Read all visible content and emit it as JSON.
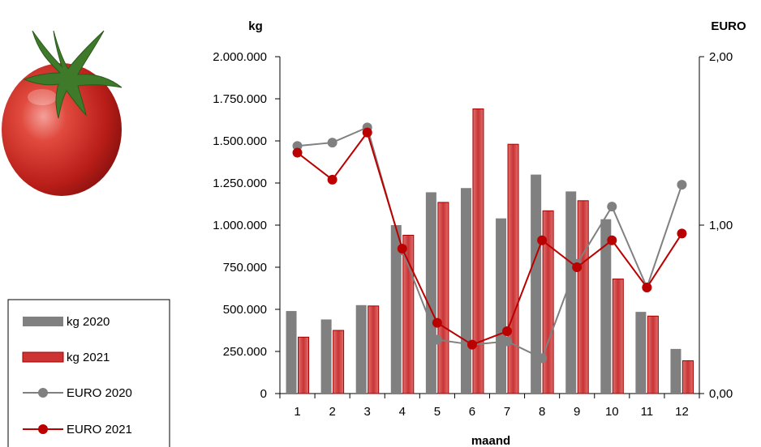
{
  "chart_data": {
    "type": "bar",
    "xlabel": "maand",
    "ylabel_left": "kg",
    "ylabel_right": "EURO",
    "categories": [
      "1",
      "2",
      "3",
      "4",
      "5",
      "6",
      "7",
      "8",
      "9",
      "10",
      "11",
      "12"
    ],
    "ylim_left": [
      0,
      2000000
    ],
    "ylim_right": [
      0,
      2
    ],
    "left_ticks": [
      "0",
      "250.000",
      "500.000",
      "750.000",
      "1.000.000",
      "1.250.000",
      "1.500.000",
      "1.750.000",
      "2.000.000"
    ],
    "right_ticks": [
      "0,00",
      "1,00",
      "2,00"
    ],
    "series": [
      {
        "name": "kg 2020",
        "type": "bar",
        "axis": "left",
        "color": "#808080",
        "values": [
          490000,
          440000,
          525000,
          1000000,
          1195000,
          1220000,
          1040000,
          1300000,
          1200000,
          1035000,
          485000,
          265000
        ]
      },
      {
        "name": "kg 2021",
        "type": "bar",
        "axis": "left",
        "color": "#cc3333",
        "values": [
          335000,
          375000,
          520000,
          940000,
          1135000,
          1690000,
          1480000,
          1085000,
          1145000,
          680000,
          460000,
          195000
        ]
      },
      {
        "name": "EURO 2020",
        "type": "line",
        "axis": "right",
        "color": "#808080",
        "values": [
          1.47,
          1.49,
          1.58,
          0.85,
          0.32,
          0.29,
          0.31,
          0.21,
          0.77,
          1.11,
          0.63,
          1.24
        ]
      },
      {
        "name": "EURO 2021",
        "type": "line",
        "axis": "right",
        "color": "#bb0000",
        "values": [
          1.43,
          1.27,
          1.55,
          0.86,
          0.42,
          0.29,
          0.37,
          0.91,
          0.75,
          0.91,
          0.63,
          0.95
        ]
      }
    ],
    "legend_position": "bottom-left",
    "grid": false
  }
}
